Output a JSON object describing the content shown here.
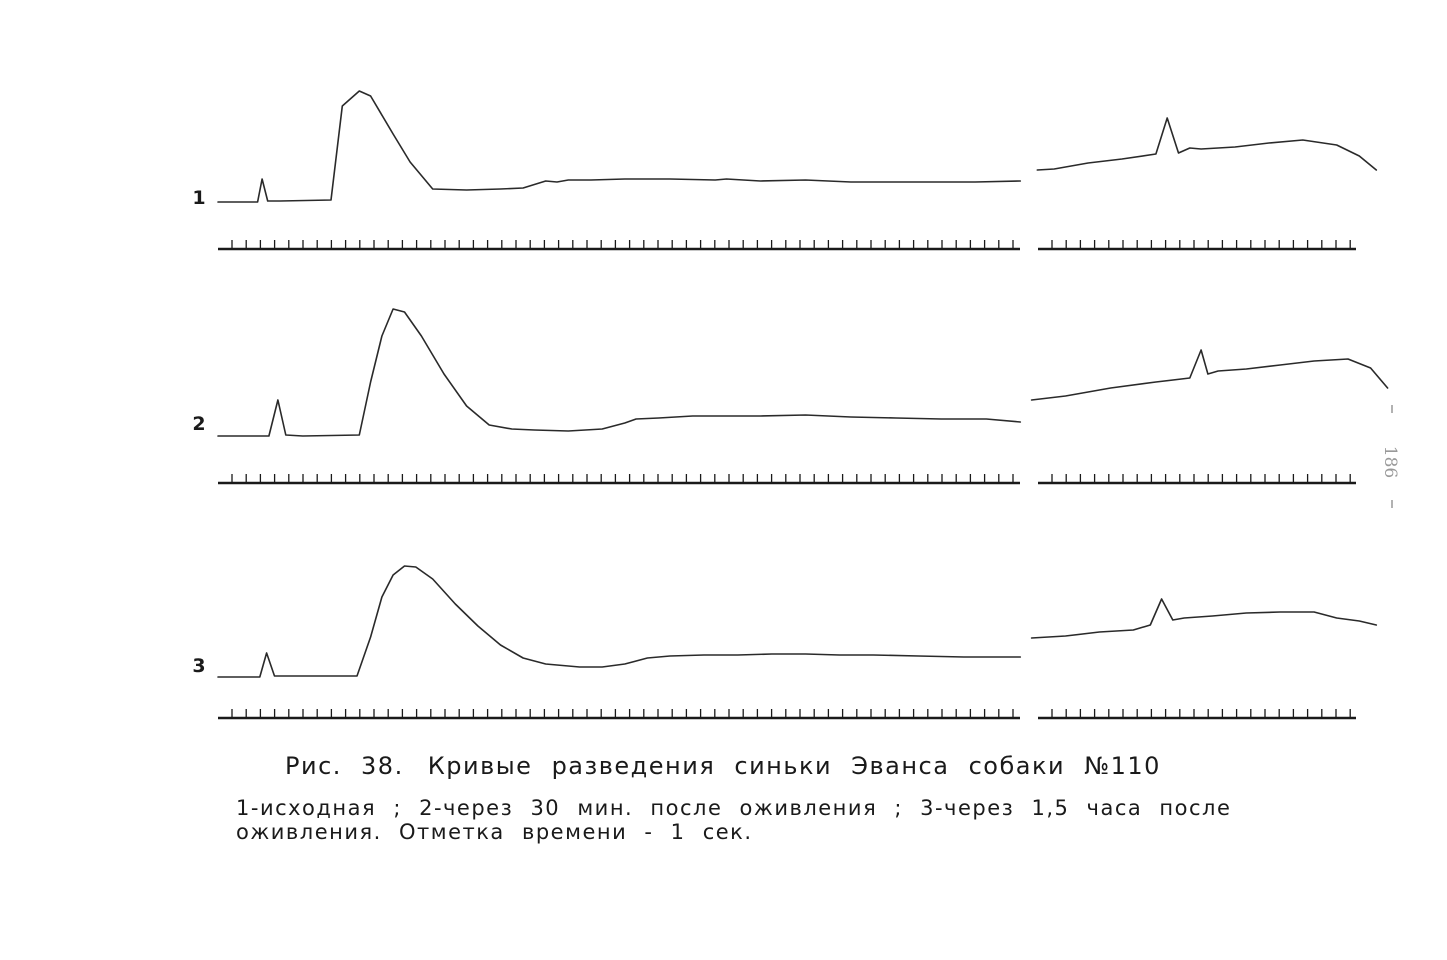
{
  "page_number": "186",
  "caption": {
    "figure_no": "Рис. 38.",
    "title": "Кривые разведения синьки Эванса собаки №110",
    "legend": "1-исходная ; 2-через 30 мин. после оживления ; 3-через 1,5 часа после оживления. Отметка времени - 1 сек."
  },
  "chart_data": {
    "type": "line",
    "title": "Кривые разведения синьки Эванса собаки №110",
    "xlabel": "",
    "ylabel": "",
    "x_unit": "с",
    "time_mark_interval_s": 1,
    "grid": false,
    "legend": "caption",
    "panels": [
      {
        "name": "1",
        "segments": [
          {
            "x": [
              0,
              3.5,
              3.9,
              4.4,
              5.5,
              10,
              11,
              12.5,
              13.5,
              15.5,
              17,
              19,
              22,
              25,
              27,
              29,
              30,
              31,
              33,
              36,
              40,
              44,
              45,
              48,
              52,
              56,
              60,
              64,
              67,
              71
            ],
            "y": [
              0,
              0,
              1.15,
              0.05,
              0.05,
              0.1,
              4.8,
              5.55,
              5.3,
              3.4,
              2.0,
              0.65,
              0.6,
              0.65,
              0.7,
              1.05,
              1.0,
              1.1,
              1.1,
              1.15,
              1.15,
              1.1,
              1.15,
              1.05,
              1.1,
              1.0,
              1.0,
              1.0,
              1.0,
              1.05
            ]
          },
          {
            "x": [
              72.5,
              74,
              77,
              80,
              83,
              84,
              85,
              86,
              87,
              90,
              93,
              96,
              99,
              101,
              102.5
            ],
            "y": [
              1.6,
              1.65,
              1.95,
              2.15,
              2.4,
              4.2,
              2.45,
              2.7,
              2.65,
              2.75,
              2.95,
              3.1,
              2.85,
              2.3,
              1.6
            ]
          }
        ]
      },
      {
        "name": "2",
        "segments": [
          {
            "x": [
              0,
              4.5,
              5.3,
              6,
              7.5,
              12.5,
              13.5,
              14.5,
              15.5,
              16.5,
              18,
              20,
              22,
              24,
              26,
              28,
              31,
              34,
              36,
              37,
              39,
              42,
              45,
              48,
              52,
              56,
              60,
              64,
              68,
              71
            ],
            "y": [
              0,
              0,
              1.8,
              0.05,
              0.0,
              0.05,
              2.7,
              5.0,
              6.35,
              6.2,
              5.0,
              3.1,
              1.5,
              0.55,
              0.35,
              0.3,
              0.25,
              0.35,
              0.65,
              0.85,
              0.9,
              1.0,
              1.0,
              1.0,
              1.05,
              0.95,
              0.9,
              0.85,
              0.85,
              0.7
            ]
          },
          {
            "x": [
              72,
              75,
              79,
              83,
              86,
              87,
              87.6,
              88.5,
              91,
              94,
              97,
              100,
              102,
              103.5
            ],
            "y": [
              1.8,
              2.0,
              2.4,
              2.7,
              2.9,
              4.3,
              3.1,
              3.25,
              3.35,
              3.55,
              3.75,
              3.85,
              3.4,
              2.4
            ]
          }
        ]
      },
      {
        "name": "3",
        "segments": [
          {
            "x": [
              0,
              3.7,
              4.3,
              5,
              6,
              12.3,
              13.5,
              14.5,
              15.5,
              16.5,
              17.5,
              19,
              21,
              23,
              25,
              27,
              29,
              32,
              34,
              36,
              38,
              40,
              43,
              46,
              49,
              52,
              55,
              58,
              62,
              66,
              70,
              71
            ],
            "y": [
              0,
              0,
              1.2,
              0.05,
              0.05,
              0.05,
              2.0,
              4.0,
              5.1,
              5.55,
              5.5,
              4.9,
              3.65,
              2.55,
              1.6,
              0.95,
              0.65,
              0.5,
              0.5,
              0.65,
              0.95,
              1.05,
              1.1,
              1.1,
              1.15,
              1.15,
              1.1,
              1.1,
              1.05,
              1.0,
              1.0,
              1.0
            ]
          },
          {
            "x": [
              72,
              75,
              78,
              81,
              82.5,
              83.5,
              84.5,
              85.5,
              88,
              91,
              94,
              97,
              99,
              101,
              102.5
            ],
            "y": [
              1.95,
              2.05,
              2.25,
              2.35,
              2.6,
              3.9,
              2.85,
              2.95,
              3.05,
              3.2,
              3.25,
              3.25,
              2.95,
              2.8,
              2.6
            ]
          }
        ]
      }
    ]
  }
}
